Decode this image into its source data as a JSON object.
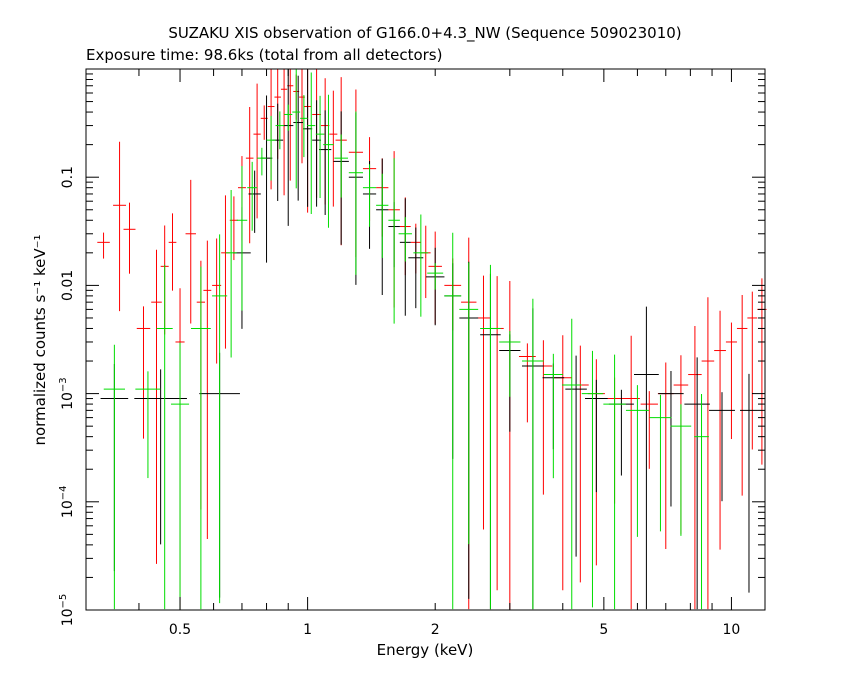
{
  "chart_data": {
    "type": "scatter",
    "title": "SUZAKU XIS observation of G166.0+4.3_NW (Sequence 509023010)",
    "subtitle": "Exposure time: 98.6ks (total from all detectors)",
    "xlabel": "Energy (keV)",
    "ylabel": "normalized counts s⁻¹ keV⁻¹",
    "xscale": "log",
    "yscale": "log",
    "xlim": [
      0.3,
      12
    ],
    "ylim": [
      1e-05,
      1
    ],
    "x_ticks": [
      {
        "value": 0.5,
        "label": "0.5"
      },
      {
        "value": 1,
        "label": "1"
      },
      {
        "value": 2,
        "label": "2"
      },
      {
        "value": 5,
        "label": "5"
      },
      {
        "value": 10,
        "label": "10"
      }
    ],
    "y_ticks": [
      {
        "value": 1e-05,
        "mant": "10",
        "exp": "−5"
      },
      {
        "value": 0.0001,
        "mant": "10",
        "exp": "−4"
      },
      {
        "value": 0.001,
        "mant": "10",
        "exp": "−3"
      },
      {
        "value": 0.01,
        "mant": "0.01",
        "exp": ""
      },
      {
        "value": 0.1,
        "mant": "0.1",
        "exp": ""
      }
    ],
    "grid": false,
    "legend": "none",
    "series": [
      {
        "color": "#ff0000",
        "points": [
          [
            0.33,
            0.025
          ],
          [
            0.36,
            0.055
          ],
          [
            0.38,
            0.033
          ],
          [
            0.41,
            0.004
          ],
          [
            0.44,
            0.007
          ],
          [
            0.46,
            0.015
          ],
          [
            0.48,
            0.025
          ],
          [
            0.5,
            0.003
          ],
          [
            0.53,
            0.03
          ],
          [
            0.56,
            0.007
          ],
          [
            0.58,
            0.009
          ],
          [
            0.61,
            0.01
          ],
          [
            0.64,
            0.02
          ],
          [
            0.67,
            0.04
          ],
          [
            0.7,
            0.08
          ],
          [
            0.73,
            0.15
          ],
          [
            0.76,
            0.25
          ],
          [
            0.79,
            0.35
          ],
          [
            0.82,
            0.45
          ],
          [
            0.85,
            0.55
          ],
          [
            0.88,
            0.65
          ],
          [
            0.91,
            0.7
          ],
          [
            0.94,
            0.62
          ],
          [
            0.97,
            0.55
          ],
          [
            1.0,
            0.45
          ],
          [
            1.05,
            0.38
          ],
          [
            1.1,
            0.3
          ],
          [
            1.15,
            0.25
          ],
          [
            1.2,
            0.22
          ],
          [
            1.3,
            0.17
          ],
          [
            1.4,
            0.12
          ],
          [
            1.5,
            0.08
          ],
          [
            1.6,
            0.05
          ],
          [
            1.7,
            0.035
          ],
          [
            1.8,
            0.025
          ],
          [
            1.9,
            0.02
          ],
          [
            2.0,
            0.015
          ],
          [
            2.2,
            0.01
          ],
          [
            2.4,
            0.007
          ],
          [
            2.6,
            0.005
          ],
          [
            2.8,
            0.004
          ],
          [
            3.0,
            0.003
          ],
          [
            3.3,
            0.0022
          ],
          [
            3.6,
            0.0018
          ],
          [
            4.0,
            0.0014
          ],
          [
            4.4,
            0.0012
          ],
          [
            4.8,
            0.001
          ],
          [
            5.3,
            0.0009
          ],
          [
            5.8,
            0.0009
          ],
          [
            6.4,
            0.0008
          ],
          [
            7.0,
            0.001
          ],
          [
            7.6,
            0.0012
          ],
          [
            8.2,
            0.0015
          ],
          [
            8.8,
            0.002
          ],
          [
            9.4,
            0.0025
          ],
          [
            10.0,
            0.003
          ],
          [
            10.6,
            0.004
          ],
          [
            11.2,
            0.005
          ],
          [
            11.8,
            0.006
          ]
        ]
      },
      {
        "color": "#000000",
        "points": [
          [
            0.35,
            0.0009
          ],
          [
            0.45,
            0.0009
          ],
          [
            0.62,
            0.001
          ],
          [
            0.7,
            0.02
          ],
          [
            0.75,
            0.07
          ],
          [
            0.8,
            0.15
          ],
          [
            0.85,
            0.22
          ],
          [
            0.9,
            0.3
          ],
          [
            0.95,
            0.32
          ],
          [
            1.0,
            0.28
          ],
          [
            1.05,
            0.22
          ],
          [
            1.1,
            0.18
          ],
          [
            1.2,
            0.14
          ],
          [
            1.3,
            0.1
          ],
          [
            1.4,
            0.07
          ],
          [
            1.5,
            0.05
          ],
          [
            1.6,
            0.035
          ],
          [
            1.7,
            0.025
          ],
          [
            1.8,
            0.018
          ],
          [
            2.0,
            0.012
          ],
          [
            2.2,
            0.008
          ],
          [
            2.4,
            0.005
          ],
          [
            2.7,
            0.0035
          ],
          [
            3.0,
            0.0025
          ],
          [
            3.4,
            0.0018
          ],
          [
            3.8,
            0.0014
          ],
          [
            4.3,
            0.0011
          ],
          [
            4.8,
            0.0009
          ],
          [
            5.5,
            0.0008
          ],
          [
            6.3,
            0.0015
          ],
          [
            7.2,
            0.001
          ],
          [
            8.3,
            0.0008
          ],
          [
            9.5,
            0.0007
          ],
          [
            11.0,
            0.0007
          ]
        ]
      },
      {
        "color": "#00dd00",
        "points": [
          [
            0.35,
            0.0011
          ],
          [
            0.42,
            0.0011
          ],
          [
            0.46,
            0.004
          ],
          [
            0.5,
            0.0008
          ],
          [
            0.56,
            0.004
          ],
          [
            0.62,
            0.008
          ],
          [
            0.66,
            0.02
          ],
          [
            0.7,
            0.04
          ],
          [
            0.74,
            0.08
          ],
          [
            0.78,
            0.15
          ],
          [
            0.82,
            0.22
          ],
          [
            0.86,
            0.3
          ],
          [
            0.9,
            0.38
          ],
          [
            0.94,
            0.4
          ],
          [
            0.98,
            0.35
          ],
          [
            1.02,
            0.3
          ],
          [
            1.07,
            0.25
          ],
          [
            1.12,
            0.2
          ],
          [
            1.2,
            0.15
          ],
          [
            1.3,
            0.11
          ],
          [
            1.4,
            0.08
          ],
          [
            1.5,
            0.055
          ],
          [
            1.6,
            0.04
          ],
          [
            1.7,
            0.03
          ],
          [
            1.85,
            0.02
          ],
          [
            2.0,
            0.013
          ],
          [
            2.2,
            0.008
          ],
          [
            2.4,
            0.006
          ],
          [
            2.7,
            0.004
          ],
          [
            3.0,
            0.003
          ],
          [
            3.4,
            0.002
          ],
          [
            3.8,
            0.0015
          ],
          [
            4.2,
            0.0012
          ],
          [
            4.7,
            0.001
          ],
          [
            5.3,
            0.0008
          ],
          [
            6.0,
            0.0007
          ],
          [
            6.8,
            0.0006
          ],
          [
            7.6,
            0.0005
          ],
          [
            8.5,
            0.0004
          ]
        ]
      }
    ]
  }
}
